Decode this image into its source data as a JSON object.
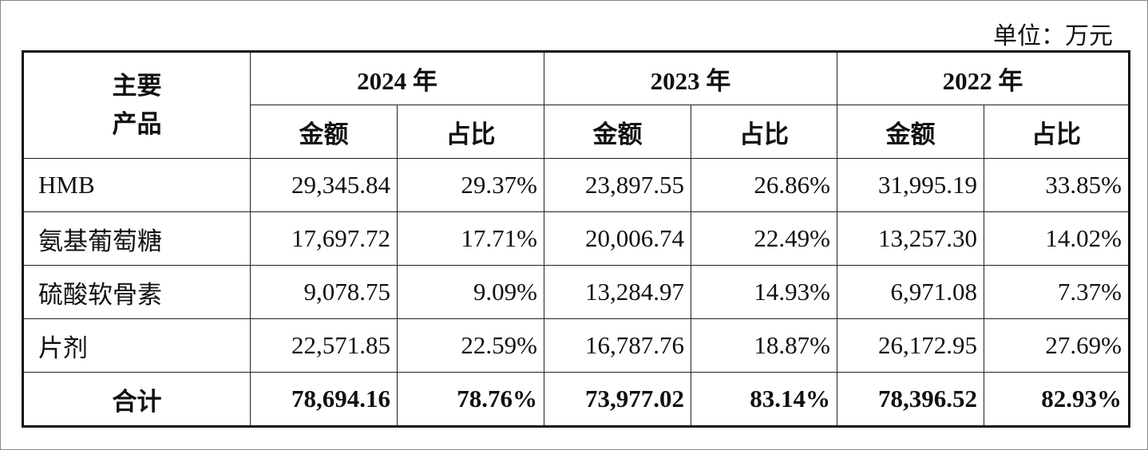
{
  "unit": "单位：万元",
  "table": {
    "corner": "主要\n产品",
    "columns": [
      {
        "year": "2024 年",
        "amount": "金额",
        "share": "占比"
      },
      {
        "year": "2023 年",
        "amount": "金额",
        "share": "占比"
      },
      {
        "year": "2022 年",
        "amount": "金额",
        "share": "占比"
      }
    ],
    "rows": [
      {
        "product": "HMB",
        "cells": [
          "29,345.84",
          "29.37%",
          "23,897.55",
          "26.86%",
          "31,995.19",
          "33.85%"
        ]
      },
      {
        "product": "氨基葡萄糖",
        "cells": [
          "17,697.72",
          "17.71%",
          "20,006.74",
          "22.49%",
          "13,257.30",
          "14.02%"
        ]
      },
      {
        "product": "硫酸软骨素",
        "cells": [
          "9,078.75",
          "9.09%",
          "13,284.97",
          "14.93%",
          "6,971.08",
          "7.37%"
        ]
      },
      {
        "product": "片剂",
        "cells": [
          "22,571.85",
          "22.59%",
          "16,787.76",
          "18.87%",
          "26,172.95",
          "27.69%"
        ]
      }
    ],
    "total": {
      "product": "合计",
      "cells": [
        "78,694.16",
        "78.76%",
        "73,977.02",
        "83.14%",
        "78,396.52",
        "82.93%"
      ]
    }
  }
}
